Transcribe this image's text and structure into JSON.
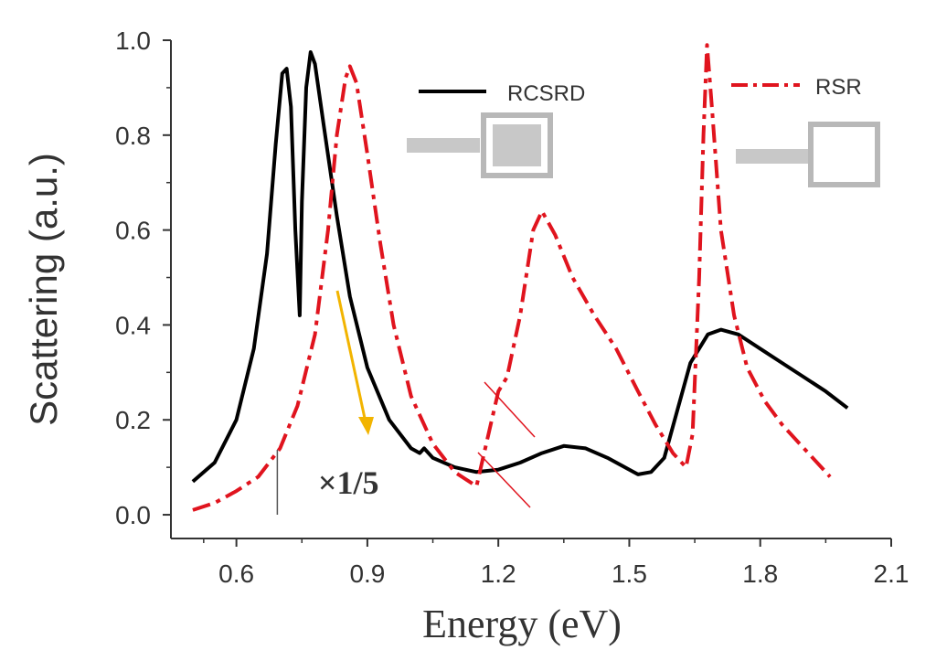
{
  "chart_data": {
    "type": "line",
    "xlabel": "Energy (eV)",
    "ylabel": "Scattering (a.u.)",
    "xlim": [
      0.45,
      2.1
    ],
    "ylim": [
      -0.05,
      1.0
    ],
    "xticks": [
      "0.6",
      "0.9",
      "1.2",
      "1.5",
      "1.8",
      "2.1"
    ],
    "xtick_values": [
      0.6,
      0.9,
      1.2,
      1.5,
      1.8,
      2.1
    ],
    "yticks": [
      "0.0",
      "0.2",
      "0.4",
      "0.6",
      "0.8",
      "1.0"
    ],
    "ytick_values": [
      0.0,
      0.2,
      0.4,
      0.6,
      0.8,
      1.0
    ],
    "legend": {
      "placement": "top"
    },
    "annotation": {
      "text": "×1/5",
      "marker_x": 0.7
    },
    "series": [
      {
        "name": "RCSRD",
        "style": "solid",
        "color": "#000000",
        "points": [
          [
            0.5,
            0.07
          ],
          [
            0.55,
            0.11
          ],
          [
            0.6,
            0.2
          ],
          [
            0.64,
            0.35
          ],
          [
            0.67,
            0.55
          ],
          [
            0.69,
            0.78
          ],
          [
            0.705,
            0.93
          ],
          [
            0.715,
            0.94
          ],
          [
            0.725,
            0.86
          ],
          [
            0.735,
            0.6
          ],
          [
            0.745,
            0.42
          ],
          [
            0.75,
            0.66
          ],
          [
            0.76,
            0.9
          ],
          [
            0.77,
            0.975
          ],
          [
            0.78,
            0.95
          ],
          [
            0.8,
            0.82
          ],
          [
            0.83,
            0.63
          ],
          [
            0.86,
            0.46
          ],
          [
            0.9,
            0.31
          ],
          [
            0.95,
            0.2
          ],
          [
            1.0,
            0.14
          ],
          [
            1.02,
            0.13
          ],
          [
            1.03,
            0.14
          ],
          [
            1.05,
            0.12
          ],
          [
            1.1,
            0.1
          ],
          [
            1.15,
            0.09
          ],
          [
            1.2,
            0.095
          ],
          [
            1.25,
            0.11
          ],
          [
            1.3,
            0.13
          ],
          [
            1.35,
            0.145
          ],
          [
            1.4,
            0.14
          ],
          [
            1.45,
            0.12
          ],
          [
            1.5,
            0.095
          ],
          [
            1.52,
            0.085
          ],
          [
            1.55,
            0.09
          ],
          [
            1.58,
            0.12
          ],
          [
            1.61,
            0.22
          ],
          [
            1.64,
            0.32
          ],
          [
            1.68,
            0.38
          ],
          [
            1.71,
            0.39
          ],
          [
            1.75,
            0.38
          ],
          [
            1.8,
            0.35
          ],
          [
            1.85,
            0.32
          ],
          [
            1.9,
            0.29
          ],
          [
            1.95,
            0.26
          ],
          [
            2.0,
            0.225
          ]
        ]
      },
      {
        "name": "RSR",
        "style": "dashdot",
        "color": "#e0141e",
        "points": [
          [
            0.5,
            0.01
          ],
          [
            0.55,
            0.025
          ],
          [
            0.6,
            0.05
          ],
          [
            0.65,
            0.08
          ],
          [
            0.7,
            0.14
          ],
          [
            0.74,
            0.23
          ],
          [
            0.78,
            0.38
          ],
          [
            0.81,
            0.6
          ],
          [
            0.83,
            0.8
          ],
          [
            0.85,
            0.92
          ],
          [
            0.86,
            0.945
          ],
          [
            0.875,
            0.91
          ],
          [
            0.9,
            0.76
          ],
          [
            0.93,
            0.57
          ],
          [
            0.96,
            0.4
          ],
          [
            1.0,
            0.25
          ],
          [
            1.05,
            0.15
          ],
          [
            1.1,
            0.09
          ],
          [
            1.15,
            0.06
          ],
          [
            1.2,
            0.26
          ],
          [
            1.22,
            0.29
          ],
          [
            1.25,
            0.42
          ],
          [
            1.28,
            0.6
          ],
          [
            1.3,
            0.64
          ],
          [
            1.33,
            0.59
          ],
          [
            1.37,
            0.5
          ],
          [
            1.42,
            0.42
          ],
          [
            1.47,
            0.35
          ],
          [
            1.52,
            0.26
          ],
          [
            1.56,
            0.19
          ],
          [
            1.6,
            0.13
          ],
          [
            1.63,
            0.1
          ],
          [
            1.645,
            0.17
          ],
          [
            1.66,
            0.5
          ],
          [
            1.67,
            0.8
          ],
          [
            1.678,
            0.99
          ],
          [
            1.69,
            0.85
          ],
          [
            1.71,
            0.6
          ],
          [
            1.74,
            0.42
          ],
          [
            1.77,
            0.31
          ],
          [
            1.81,
            0.24
          ],
          [
            1.85,
            0.19
          ],
          [
            1.9,
            0.14
          ],
          [
            1.94,
            0.1
          ],
          [
            1.96,
            0.08
          ]
        ]
      }
    ]
  }
}
